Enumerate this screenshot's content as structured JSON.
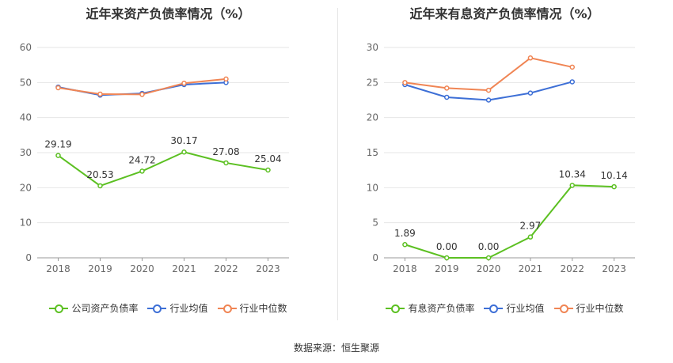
{
  "chart_data": [
    {
      "type": "line",
      "title": "近年来资产负债率情况（%）",
      "categories": [
        "2018",
        "2019",
        "2020",
        "2021",
        "2022",
        "2023"
      ],
      "ylim": [
        0,
        60
      ],
      "yticks": [
        0,
        10,
        20,
        30,
        40,
        50,
        60
      ],
      "series": [
        {
          "name": "公司资产负债率",
          "color": "#5cc022",
          "values": [
            29.19,
            20.53,
            24.72,
            30.17,
            27.08,
            25.04
          ],
          "labels": [
            "29.19",
            "20.53",
            "24.72",
            "30.17",
            "27.08",
            "25.04"
          ]
        },
        {
          "name": "行业均值",
          "color": "#3d6fd6",
          "values": [
            48.7,
            46.4,
            46.9,
            49.4,
            50.0,
            null
          ]
        },
        {
          "name": "行业中位数",
          "color": "#f08554",
          "values": [
            48.5,
            46.7,
            46.6,
            49.8,
            51.0,
            null
          ]
        }
      ],
      "legend": "bottom",
      "grid": true
    },
    {
      "type": "line",
      "title": "近年来有息资产负债率情况（%）",
      "categories": [
        "2018",
        "2019",
        "2020",
        "2021",
        "2022",
        "2023"
      ],
      "ylim": [
        0,
        30
      ],
      "yticks": [
        0,
        5,
        10,
        15,
        20,
        25,
        30
      ],
      "series": [
        {
          "name": "有息资产负债率",
          "color": "#5cc022",
          "values": [
            1.89,
            0.0,
            0.0,
            2.97,
            10.34,
            10.14
          ],
          "labels": [
            "1.89",
            "0.00",
            "0.00",
            "2.97",
            "10.34",
            "10.14"
          ]
        },
        {
          "name": "行业均值",
          "color": "#3d6fd6",
          "values": [
            24.7,
            22.9,
            22.5,
            23.5,
            25.1,
            null
          ]
        },
        {
          "name": "行业中位数",
          "color": "#f08554",
          "values": [
            25.0,
            24.2,
            23.9,
            28.5,
            27.2,
            null
          ]
        }
      ],
      "legend": "bottom",
      "grid": true
    }
  ],
  "source": "数据来源：恒生聚源"
}
